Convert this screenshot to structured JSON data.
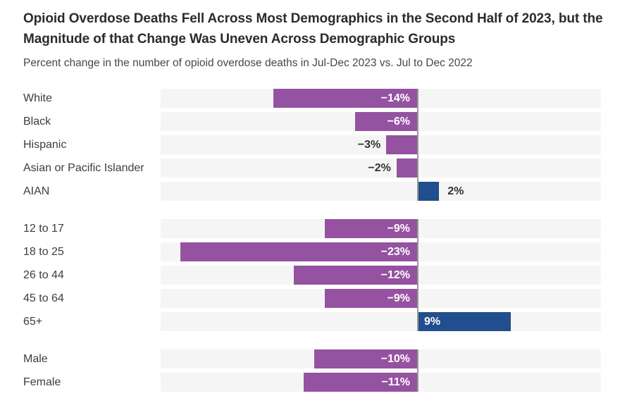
{
  "header": {
    "title": "Opioid Overdose Deaths Fell Across Most Demographics in the Second Half of 2023, but the Magnitude of that Change Was Uneven Across Demographic Groups",
    "subtitle": "Percent change in the number of opioid overdose deaths in Jul-Dec 2023 vs. Jul to Dec 2022"
  },
  "colors": {
    "negative_bar": "#9552a0",
    "positive_bar": "#214e8c",
    "row_background": "#f5f5f5",
    "zero_line": "#999999",
    "title_text": "#2b2b2b",
    "subtitle_text": "#474747",
    "category_text": "#3d3d3d",
    "value_inside_text": "#ffffff",
    "value_outside_text": "#333333"
  },
  "chart_data": {
    "type": "bar",
    "orientation": "horizontal",
    "unit": "%",
    "xlim": [
      -25,
      18
    ],
    "title": "Opioid Overdose Deaths Fell Across Most Demographics in the Second Half of 2023, but the Magnitude of that Change Was Uneven Across Demographic Groups",
    "subtitle": "Percent change in the number of opioid overdose deaths in Jul-Dec 2023 vs. Jul to Dec 2022",
    "legend": "none",
    "grid": "off",
    "groups": [
      {
        "name": "race-ethnicity",
        "bars": [
          {
            "category": "White",
            "value": -14,
            "display": "−14%",
            "label_position": "inside"
          },
          {
            "category": "Black",
            "value": -6,
            "display": "−6%",
            "label_position": "inside"
          },
          {
            "category": "Hispanic",
            "value": -3,
            "display": "−3%",
            "label_position": "outside"
          },
          {
            "category": "Asian or Pacific Islander",
            "value": -2,
            "display": "−2%",
            "label_position": "outside"
          },
          {
            "category": "AIAN",
            "value": 2,
            "display": "2%",
            "label_position": "outside"
          }
        ]
      },
      {
        "name": "age",
        "bars": [
          {
            "category": "12 to 17",
            "value": -9,
            "display": "−9%",
            "label_position": "inside"
          },
          {
            "category": "18 to 25",
            "value": -23,
            "display": "−23%",
            "label_position": "inside"
          },
          {
            "category": "26 to 44",
            "value": -12,
            "display": "−12%",
            "label_position": "inside"
          },
          {
            "category": "45 to 64",
            "value": -9,
            "display": "−9%",
            "label_position": "inside"
          },
          {
            "category": "65+",
            "value": 9,
            "display": "9%",
            "label_position": "inside"
          }
        ]
      },
      {
        "name": "sex",
        "bars": [
          {
            "category": "Male",
            "value": -10,
            "display": "−10%",
            "label_position": "inside"
          },
          {
            "category": "Female",
            "value": -11,
            "display": "−11%",
            "label_position": "inside"
          }
        ]
      }
    ]
  }
}
